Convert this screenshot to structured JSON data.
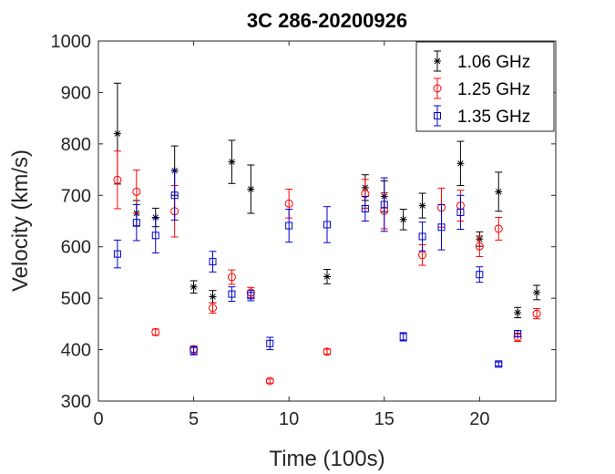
{
  "chart_data": {
    "type": "scatter",
    "title": "3C 286-20200926",
    "xlabel": "Time (100s)",
    "ylabel": "Velocity (km/s)",
    "xlim": [
      0,
      24
    ],
    "ylim": [
      300,
      1000
    ],
    "xticks": [
      0,
      5,
      10,
      15,
      20
    ],
    "yticks": [
      300,
      400,
      500,
      600,
      700,
      800,
      900,
      1000
    ],
    "grid": false,
    "legend_position": "top-right",
    "series": [
      {
        "name": "1.06 GHz",
        "color": "#000000",
        "marker": "asterisk",
        "points": [
          {
            "x": 1,
            "y": 820,
            "err": 98
          },
          {
            "x": 2,
            "y": 665,
            "err": 25
          },
          {
            "x": 3,
            "y": 657,
            "err": 18
          },
          {
            "x": 4,
            "y": 748,
            "err": 48
          },
          {
            "x": 5,
            "y": 522,
            "err": 12
          },
          {
            "x": 6,
            "y": 503,
            "err": 12
          },
          {
            "x": 7,
            "y": 765,
            "err": 42
          },
          {
            "x": 8,
            "y": 712,
            "err": 47
          },
          {
            "x": 12,
            "y": 542,
            "err": 14
          },
          {
            "x": 14,
            "y": 715,
            "err": 25
          },
          {
            "x": 15,
            "y": 698,
            "err": 30
          },
          {
            "x": 16,
            "y": 653,
            "err": 20
          },
          {
            "x": 17,
            "y": 680,
            "err": 24
          },
          {
            "x": 19,
            "y": 762,
            "err": 43
          },
          {
            "x": 20,
            "y": 615,
            "err": 14
          },
          {
            "x": 21,
            "y": 707,
            "err": 38
          },
          {
            "x": 22,
            "y": 472,
            "err": 10
          },
          {
            "x": 23,
            "y": 511,
            "err": 14
          }
        ]
      },
      {
        "name": "1.25 GHz",
        "color": "#ff0000",
        "marker": "circle",
        "points": [
          {
            "x": 1,
            "y": 730,
            "err": 56
          },
          {
            "x": 2,
            "y": 707,
            "err": 42
          },
          {
            "x": 3,
            "y": 434,
            "err": 6
          },
          {
            "x": 4,
            "y": 669,
            "err": 50
          },
          {
            "x": 5,
            "y": 401,
            "err": 6
          },
          {
            "x": 6,
            "y": 481,
            "err": 10
          },
          {
            "x": 7,
            "y": 541,
            "err": 14
          },
          {
            "x": 8,
            "y": 511,
            "err": 10
          },
          {
            "x": 9,
            "y": 339,
            "err": 4
          },
          {
            "x": 10,
            "y": 684,
            "err": 28
          },
          {
            "x": 12,
            "y": 396,
            "err": 5
          },
          {
            "x": 14,
            "y": 703,
            "err": 28
          },
          {
            "x": 15,
            "y": 670,
            "err": 35
          },
          {
            "x": 17,
            "y": 584,
            "err": 20
          },
          {
            "x": 18,
            "y": 676,
            "err": 38
          },
          {
            "x": 19,
            "y": 680,
            "err": 30
          },
          {
            "x": 20,
            "y": 601,
            "err": 20
          },
          {
            "x": 21,
            "y": 635,
            "err": 22
          },
          {
            "x": 22,
            "y": 424,
            "err": 8
          },
          {
            "x": 23,
            "y": 470,
            "err": 10
          }
        ]
      },
      {
        "name": "1.35 GHz",
        "color": "#0000cc",
        "marker": "square",
        "points": [
          {
            "x": 1,
            "y": 586,
            "err": 27
          },
          {
            "x": 2,
            "y": 647,
            "err": 35
          },
          {
            "x": 3,
            "y": 622,
            "err": 34
          },
          {
            "x": 4,
            "y": 700,
            "err": 48
          },
          {
            "x": 5,
            "y": 398,
            "err": 8
          },
          {
            "x": 6,
            "y": 571,
            "err": 20
          },
          {
            "x": 7,
            "y": 508,
            "err": 14
          },
          {
            "x": 8,
            "y": 505,
            "err": 10
          },
          {
            "x": 9,
            "y": 412,
            "err": 12
          },
          {
            "x": 10,
            "y": 641,
            "err": 32
          },
          {
            "x": 12,
            "y": 643,
            "err": 35
          },
          {
            "x": 14,
            "y": 674,
            "err": 24
          },
          {
            "x": 15,
            "y": 682,
            "err": 52
          },
          {
            "x": 16,
            "y": 425,
            "err": 8
          },
          {
            "x": 17,
            "y": 620,
            "err": 28
          },
          {
            "x": 18,
            "y": 638,
            "err": 44
          },
          {
            "x": 19,
            "y": 667,
            "err": 33
          },
          {
            "x": 20,
            "y": 546,
            "err": 15
          },
          {
            "x": 21,
            "y": 372,
            "err": 4
          },
          {
            "x": 22,
            "y": 431,
            "err": 6
          }
        ]
      }
    ]
  }
}
